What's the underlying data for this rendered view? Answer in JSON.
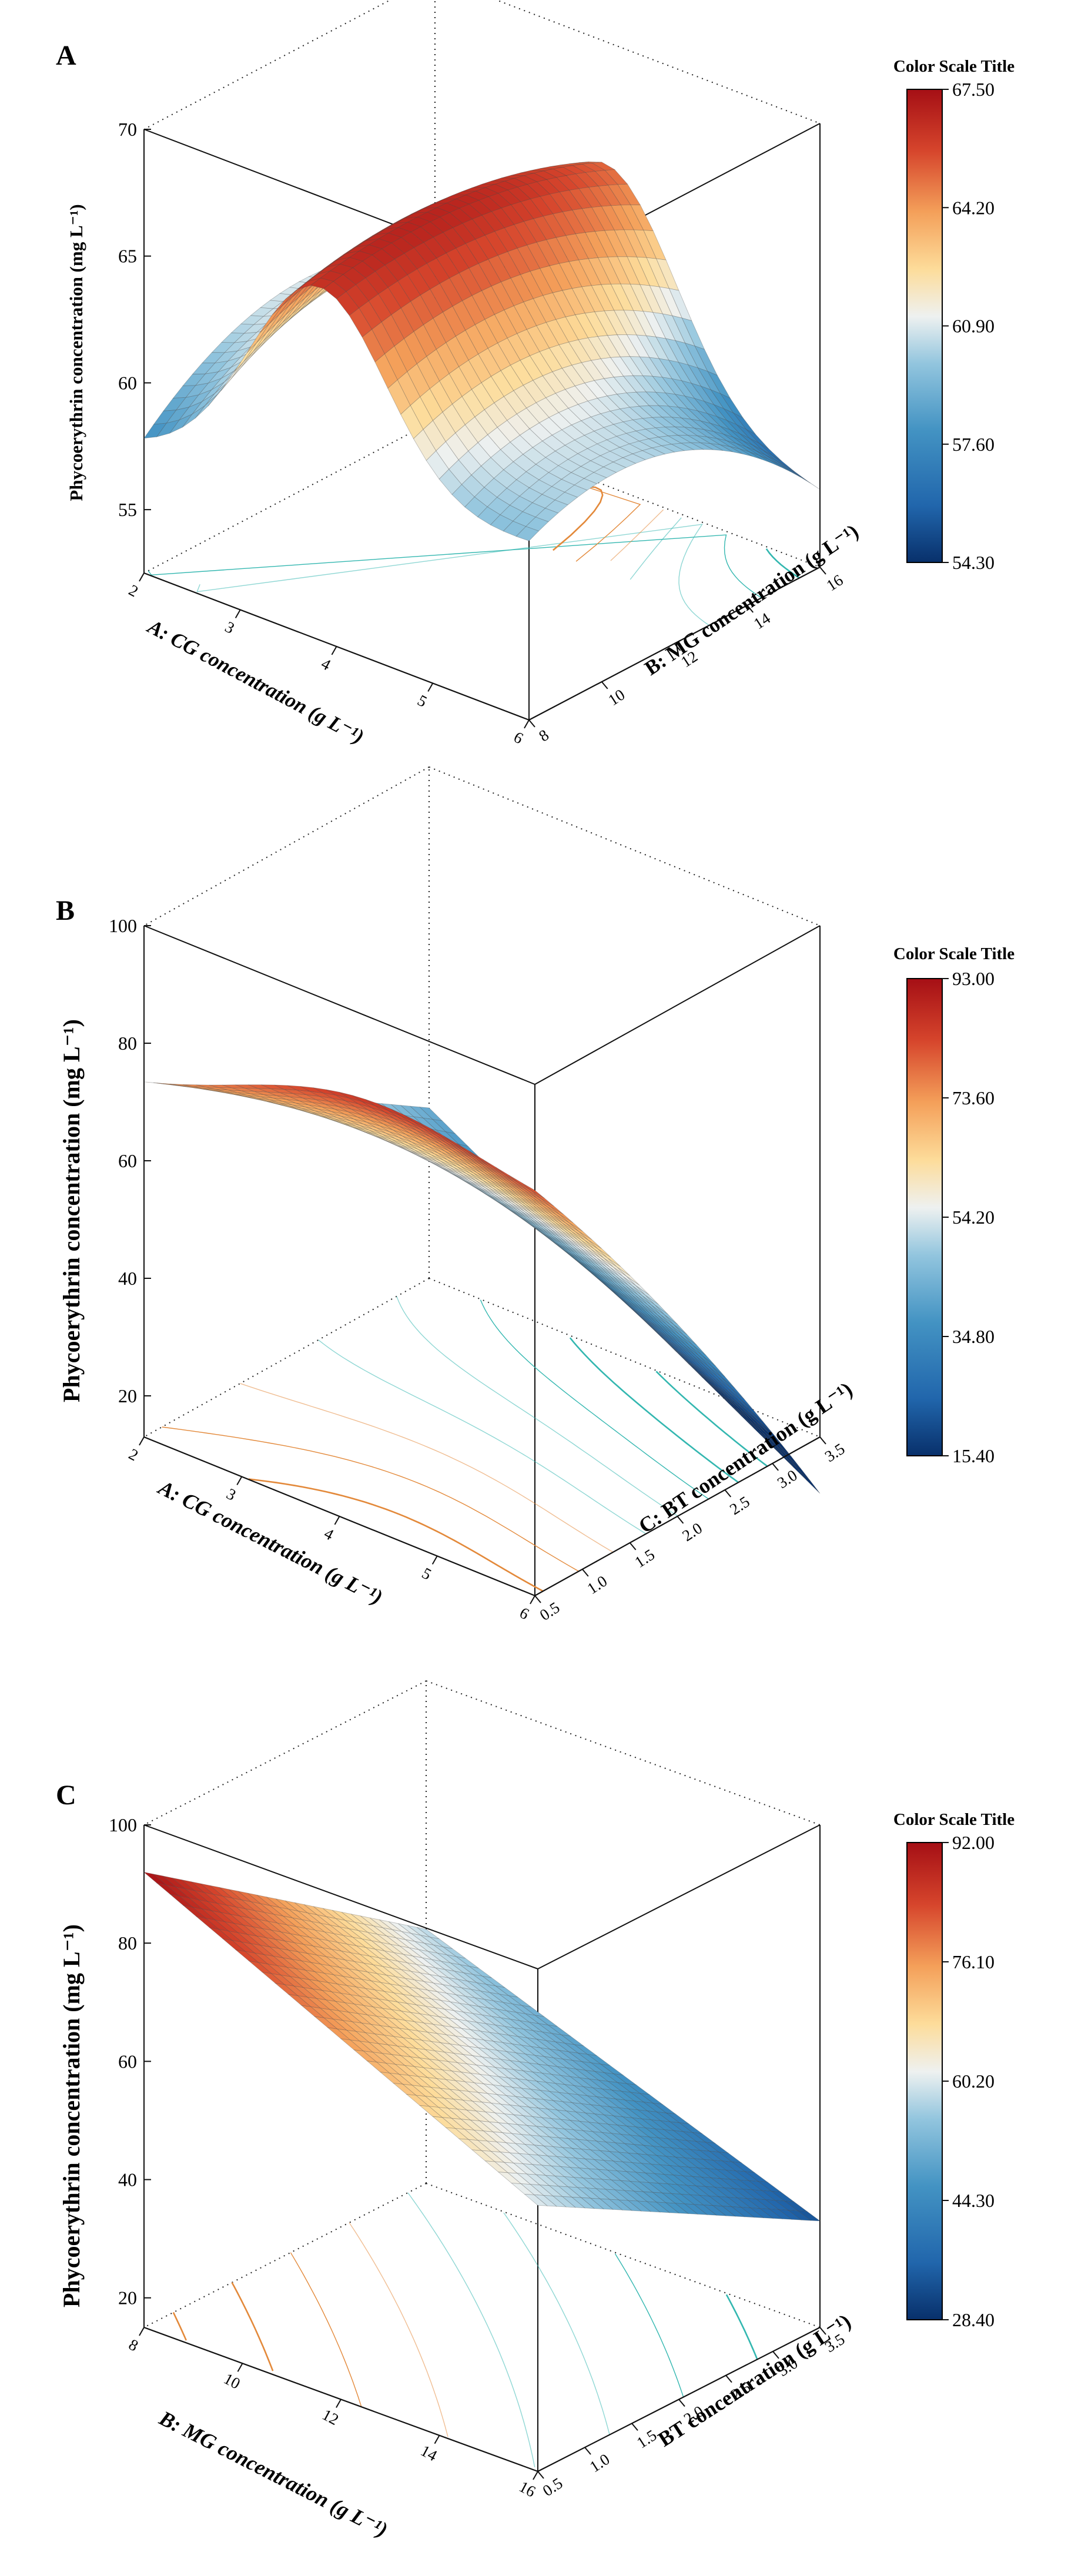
{
  "chart_data": [
    {
      "panel_label": "A",
      "type": "surface3d",
      "title": "",
      "xlabel": "A: CG concentration (g L⁻¹)",
      "ylabel": "B: MG concentration (g L⁻¹)",
      "zlabel": "Phycoerythrin concentration (mg L⁻¹)",
      "x_ticks": [
        "2",
        "3",
        "4",
        "5",
        "6"
      ],
      "y_ticks": [
        "8",
        "10",
        "12",
        "14",
        "16"
      ],
      "z_ticks": [
        "55",
        "60",
        "65",
        "70"
      ],
      "x_range": [
        2,
        6
      ],
      "y_range": [
        8,
        16
      ],
      "z_range": [
        52.5,
        70
      ],
      "colorbar_title": "Color Scale Title",
      "colorbar_ticks": [
        "67.50",
        "64.20",
        "60.90",
        "57.60",
        "54.30"
      ],
      "colorbar_range": [
        54.3,
        67.5
      ],
      "corner_values": {
        "x2_y8": 60.0,
        "x6_y8": 62.0,
        "x2_y16": 61.0,
        "x6_y16": 58.0
      },
      "ridge_max": 66.5,
      "shape": "saddle"
    },
    {
      "panel_label": "B",
      "type": "surface3d",
      "title": "",
      "xlabel": "A: CG concentration (g L⁻¹)",
      "ylabel": "C: BT concentration (g L⁻¹)",
      "zlabel": "Phycoerythrin concentration (mg L⁻¹)",
      "x_ticks": [
        "2",
        "3",
        "4",
        "5",
        "6"
      ],
      "y_ticks": [
        "0.5",
        "1.0",
        "1.5",
        "2.0",
        "2.5",
        "3.0",
        "3.5"
      ],
      "z_ticks": [
        "20",
        "40",
        "60",
        "80",
        "100"
      ],
      "x_range": [
        2,
        6
      ],
      "y_range": [
        0.5,
        3.5
      ],
      "z_range": [
        13,
        100
      ],
      "colorbar_title": "Color Scale Title",
      "colorbar_ticks": [
        "93.00",
        "73.60",
        "54.20",
        "34.80",
        "15.40"
      ],
      "colorbar_range": [
        15.4,
        93.0
      ],
      "corner_values": {
        "x2_y05": 71.0,
        "x6_y05": 78.0,
        "x2_y35": 42.0,
        "x6_y35": 15.4
      },
      "ridge_max": 84.0,
      "shape": "dome"
    },
    {
      "panel_label": "C",
      "type": "surface3d",
      "title": "",
      "xlabel": "B: MG concentration (g L⁻¹)",
      "ylabel": "BT concentration (g L⁻¹)",
      "zlabel": "Phycoerythrin concentration (mg L⁻¹)",
      "x_ticks": [
        "8",
        "10",
        "12",
        "14",
        "16"
      ],
      "y_ticks": [
        "0.5",
        "1.0",
        "1.5",
        "2.0",
        "2.5",
        "3.0",
        "3.5"
      ],
      "z_ticks": [
        "20",
        "40",
        "60",
        "80",
        "100"
      ],
      "x_range": [
        8,
        16
      ],
      "y_range": [
        0.5,
        3.5
      ],
      "z_range": [
        15,
        100
      ],
      "colorbar_title": "Color Scale Title",
      "colorbar_ticks": [
        "92.00",
        "76.10",
        "60.20",
        "44.30",
        "28.40"
      ],
      "colorbar_range": [
        28.4,
        92.0
      ],
      "corner_values": {
        "x8_y05": 92.0,
        "x16_y05": 60.0,
        "x8_y35": 58.0,
        "x16_y35": 33.0
      },
      "shape": "tilted-plane"
    }
  ]
}
